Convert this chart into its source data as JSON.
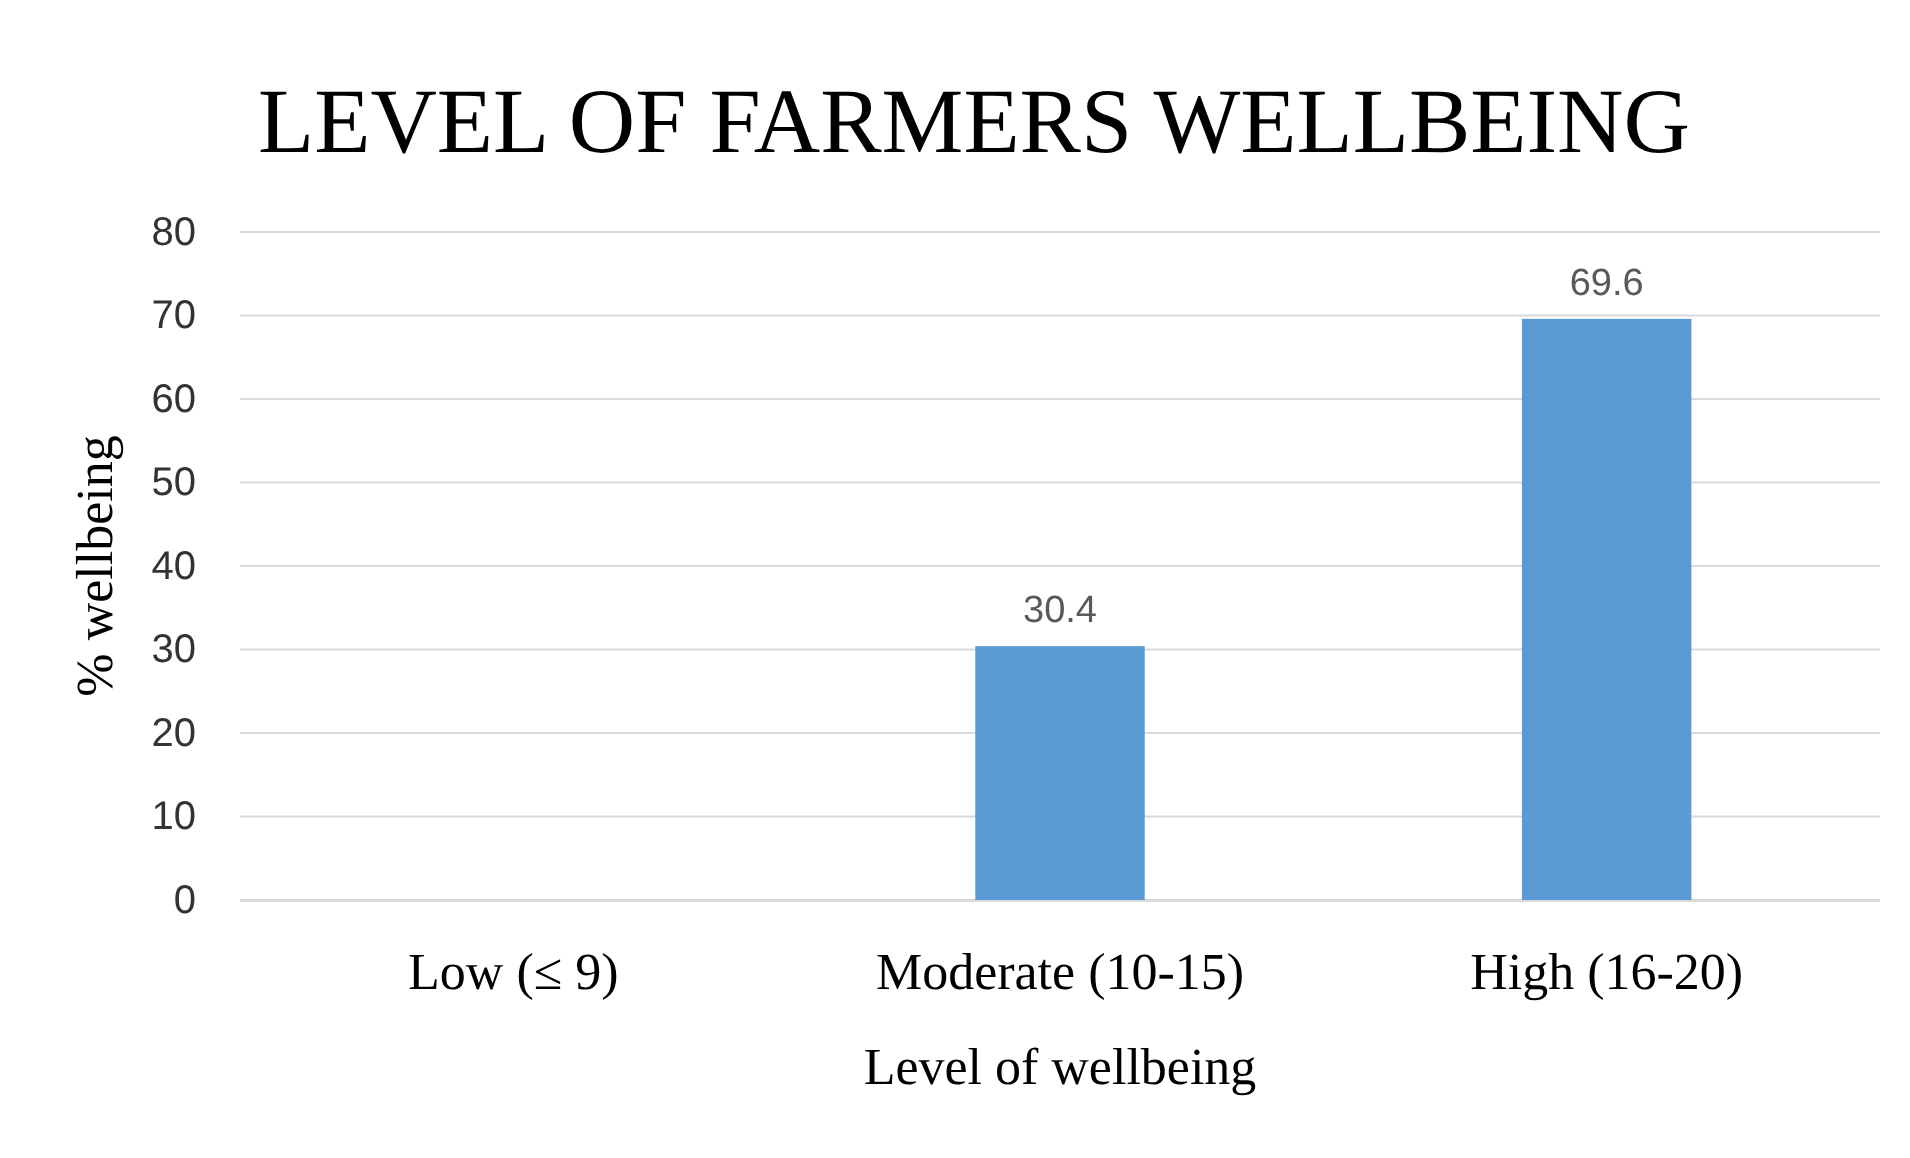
{
  "chart_data": {
    "type": "bar",
    "title": "LEVEL OF FARMERS WELLBEING",
    "xlabel": "Level of wellbeing",
    "ylabel": "% wellbeing",
    "categories": [
      "Low (≤ 9)",
      "Moderate (10-15)",
      "High (16-20)"
    ],
    "values": [
      0,
      30.4,
      69.6
    ],
    "value_labels": [
      null,
      "30.4",
      "69.6"
    ],
    "color": "#5b9bd5",
    "ylim": [
      0,
      80
    ],
    "yticks": [
      0,
      10,
      20,
      30,
      40,
      50,
      60,
      70,
      80
    ],
    "grid": "y"
  }
}
